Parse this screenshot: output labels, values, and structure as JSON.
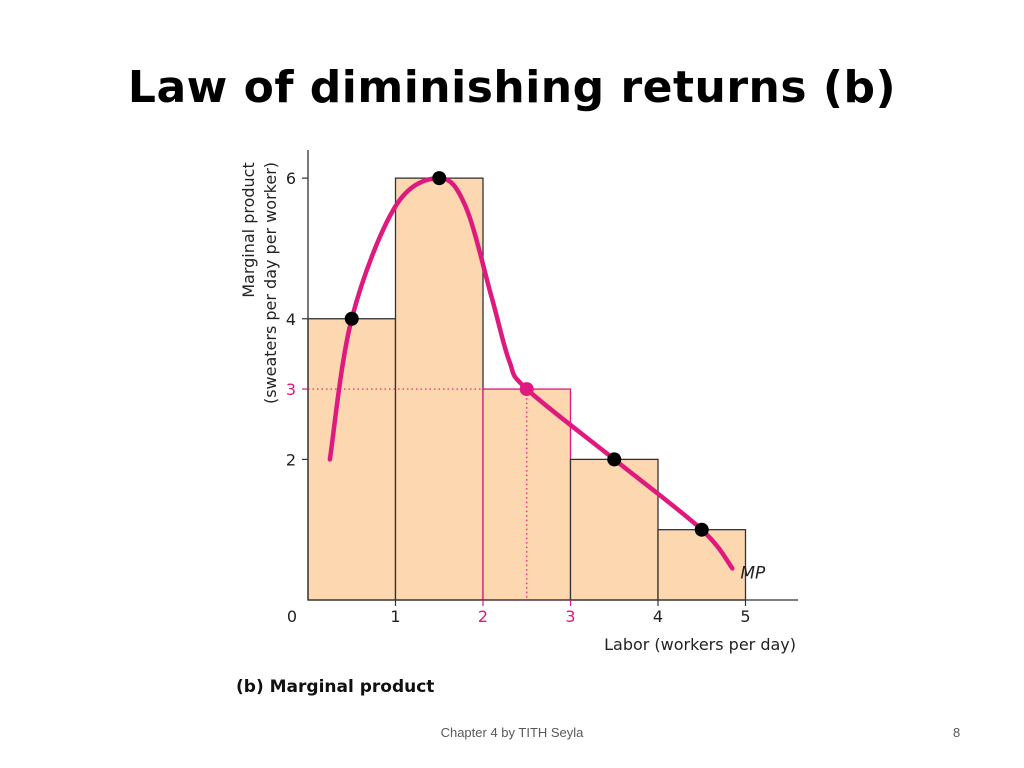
{
  "slide": {
    "title": "Law of diminishing returns (b)",
    "caption": "(b) Marginal product",
    "footer": "Chapter 4 by TITH Seyla",
    "page_number": "8"
  },
  "colors": {
    "bar_fill": "#fcd7b0",
    "curve": "#e0197f",
    "highlight": "#e0197f",
    "axis": "#333333",
    "dot": "#000000"
  },
  "chart_data": {
    "type": "bar",
    "bars": [
      {
        "x0": 0,
        "x1": 1,
        "value": 4,
        "highlight": false
      },
      {
        "x0": 1,
        "x1": 2,
        "value": 6,
        "highlight": false
      },
      {
        "x0": 2,
        "x1": 3,
        "value": 3,
        "highlight": true
      },
      {
        "x0": 3,
        "x1": 4,
        "value": 2,
        "highlight": false
      },
      {
        "x0": 4,
        "x1": 5,
        "value": 1,
        "highlight": false
      }
    ],
    "mp_curve": {
      "name": "MP",
      "points": [
        [
          0.25,
          2
        ],
        [
          0.5,
          4
        ],
        [
          1.0,
          5.6
        ],
        [
          1.5,
          6
        ],
        [
          1.8,
          5.6
        ],
        [
          2.1,
          4.3
        ],
        [
          2.3,
          3.4
        ],
        [
          2.5,
          3
        ],
        [
          3.5,
          2
        ],
        [
          4.5,
          1
        ],
        [
          4.85,
          0.45
        ]
      ]
    },
    "marked_points": [
      {
        "x": 0.5,
        "y": 4,
        "highlight": false
      },
      {
        "x": 1.5,
        "y": 6,
        "highlight": false
      },
      {
        "x": 2.5,
        "y": 3,
        "highlight": true
      },
      {
        "x": 3.5,
        "y": 2,
        "highlight": false
      },
      {
        "x": 4.5,
        "y": 1,
        "highlight": false
      }
    ],
    "highlight_value": 3,
    "highlight_x": 2.5,
    "xlim": [
      0,
      5.6
    ],
    "ylim": [
      0,
      6.4
    ],
    "x_ticks": [
      {
        "value": 0,
        "label": "0",
        "highlight": false
      },
      {
        "value": 1,
        "label": "1",
        "highlight": false
      },
      {
        "value": 2,
        "label": "2",
        "highlight": true
      },
      {
        "value": 3,
        "label": "3",
        "highlight": true
      },
      {
        "value": 4,
        "label": "4",
        "highlight": false
      },
      {
        "value": 5,
        "label": "5",
        "highlight": false
      }
    ],
    "y_ticks": [
      {
        "value": 2,
        "label": "2",
        "highlight": false
      },
      {
        "value": 3,
        "label": "3",
        "highlight": true
      },
      {
        "value": 4,
        "label": "4",
        "highlight": false
      },
      {
        "value": 6,
        "label": "6",
        "highlight": false
      }
    ],
    "xlabel": "Labor (workers per day)",
    "ylabel_line1": "Marginal product",
    "ylabel_line2": "(sweaters per day per worker)",
    "curve_label": "MP"
  }
}
